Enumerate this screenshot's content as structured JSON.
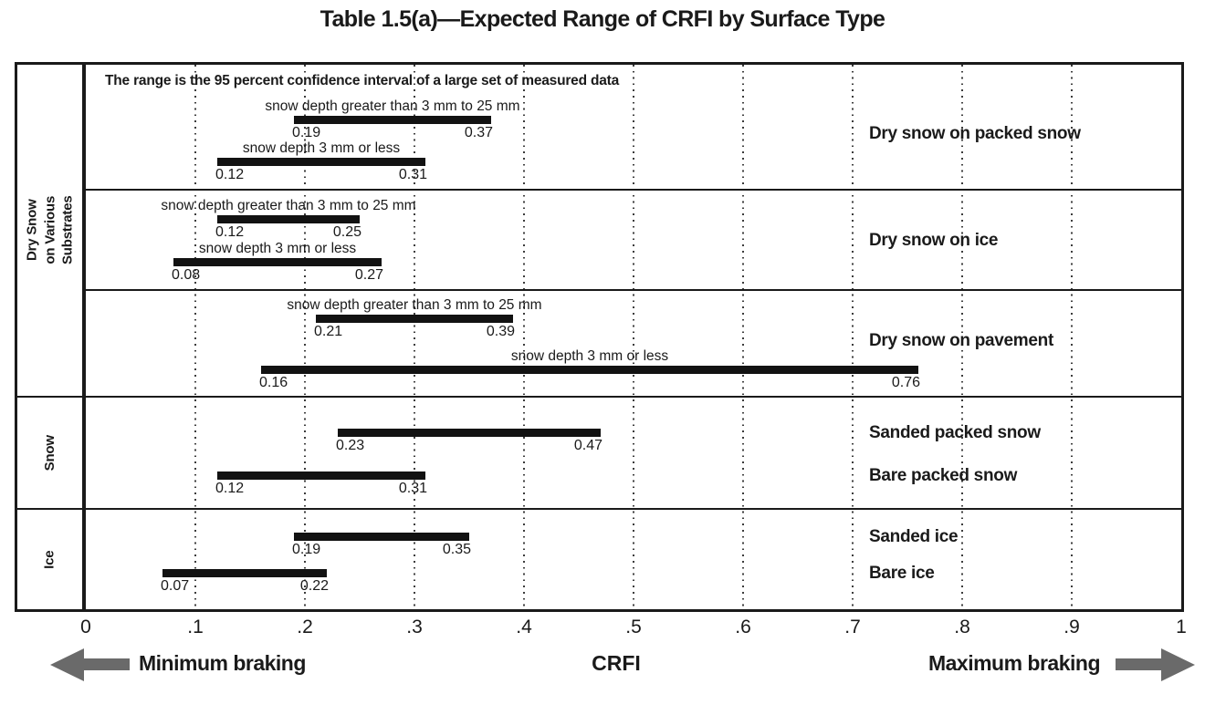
{
  "title": "Table 1.5(a)—Expected Range of CRFI by Surface Type",
  "colors": {
    "ink": "#1a1a1a",
    "bar": "#121212",
    "arrow_gray": "#6a6a6a",
    "background": "#ffffff"
  },
  "chart_data": {
    "type": "bar",
    "subtype": "horizontal-range-bars",
    "title": "Table 1.5(a)—Expected Range of CRFI by Surface Type",
    "annotation": "The range is the 95 percent confidence interval of a large set of measured data",
    "xlabel": "CRFI",
    "grid": "dotted-vertical",
    "x_axis": {
      "min": 0,
      "max": 1,
      "tick_labels": [
        "0",
        ".1",
        ".2",
        ".3",
        ".4",
        ".5",
        ".6",
        ".7",
        ".8",
        ".9",
        "1"
      ],
      "tick_values": [
        0,
        0.1,
        0.2,
        0.3,
        0.4,
        0.5,
        0.6,
        0.7,
        0.8,
        0.9,
        1
      ],
      "min_end_label": "Minimum braking",
      "max_end_label": "Maximum braking"
    },
    "row_groups": [
      {
        "label": "Dry Snow\non Various Substrates",
        "section_count": 3
      },
      {
        "label": "Snow",
        "section_count": 1
      },
      {
        "label": "Ice",
        "section_count": 1
      }
    ],
    "sections": [
      {
        "surface_label": "Dry snow on packed snow",
        "bars": [
          {
            "condition": "snow depth greater than 3 mm to 25 mm",
            "min": 0.19,
            "max": 0.37
          },
          {
            "condition": "snow depth 3 mm or less",
            "min": 0.12,
            "max": 0.31
          }
        ]
      },
      {
        "surface_label": "Dry snow on ice",
        "bars": [
          {
            "condition": "snow depth greater than 3 mm to 25 mm",
            "min": 0.12,
            "max": 0.25
          },
          {
            "condition": "snow depth 3 mm or less",
            "min": 0.08,
            "max": 0.27
          }
        ]
      },
      {
        "surface_label": "Dry snow on pavement",
        "bars": [
          {
            "condition": "snow depth greater than 3 mm to 25 mm",
            "min": 0.21,
            "max": 0.39
          },
          {
            "condition": "snow depth 3 mm or less",
            "min": 0.16,
            "max": 0.76
          }
        ]
      },
      {
        "bars": [
          {
            "surface_label": "Sanded packed snow",
            "min": 0.23,
            "max": 0.47
          },
          {
            "surface_label": "Bare packed snow",
            "min": 0.12,
            "max": 0.31
          }
        ]
      },
      {
        "bars": [
          {
            "surface_label": "Sanded ice",
            "min": 0.19,
            "max": 0.35
          },
          {
            "surface_label": "Bare ice",
            "min": 0.07,
            "max": 0.22
          }
        ]
      }
    ]
  }
}
